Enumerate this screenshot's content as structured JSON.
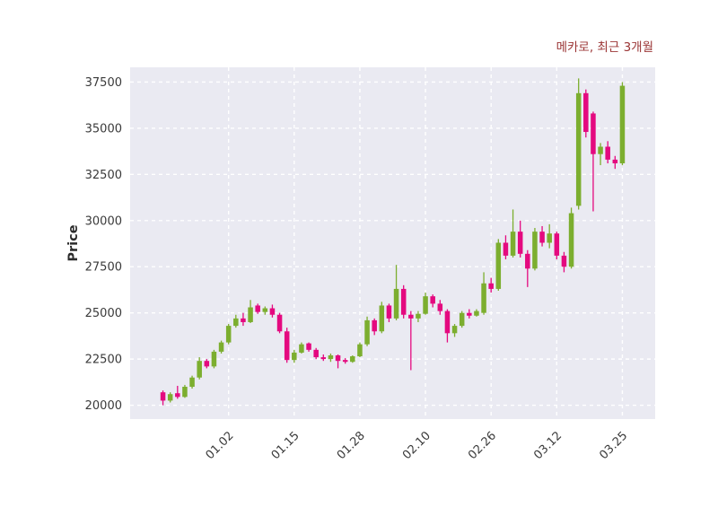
{
  "header": {
    "title": "메카로, 최근 3개월"
  },
  "chart_data": {
    "type": "candlestick",
    "title": "메카로, 최근 3개월",
    "xlabel": "",
    "ylabel": "Price",
    "ylim": [
      19250,
      38300
    ],
    "yticks": [
      20000,
      22500,
      25000,
      27500,
      30000,
      32500,
      35000,
      37500
    ],
    "xticks": [
      {
        "index": 9,
        "label": "01.02"
      },
      {
        "index": 18,
        "label": "01.15"
      },
      {
        "index": 27,
        "label": "01.28"
      },
      {
        "index": 36,
        "label": "02.10"
      },
      {
        "index": 45,
        "label": "02.26"
      },
      {
        "index": 54,
        "label": "03.12"
      },
      {
        "index": 63,
        "label": "03.25"
      }
    ],
    "grid": true,
    "legend": null,
    "colors": {
      "up": "#7cae2f",
      "down": "#e4097f",
      "plot_background": "#eaeaf2",
      "grid": "#ffffff",
      "title": "#9b3535",
      "tick": "#3a3a3a"
    },
    "candle_format": [
      "open",
      "high",
      "low",
      "close"
    ],
    "candles": [
      [
        20700,
        20800,
        20000,
        20250
      ],
      [
        20250,
        20700,
        20150,
        20600
      ],
      [
        20650,
        21050,
        20350,
        20450
      ],
      [
        20450,
        21100,
        20400,
        21000
      ],
      [
        21000,
        21600,
        20900,
        21500
      ],
      [
        21500,
        22600,
        21400,
        22400
      ],
      [
        22400,
        22500,
        22000,
        22100
      ],
      [
        22100,
        23000,
        22000,
        22900
      ],
      [
        22900,
        23500,
        22800,
        23400
      ],
      [
        23400,
        24400,
        23300,
        24300
      ],
      [
        24300,
        24900,
        24200,
        24700
      ],
      [
        24700,
        25000,
        24300,
        24500
      ],
      [
        24500,
        25700,
        24450,
        25300
      ],
      [
        25400,
        25500,
        24950,
        25050
      ],
      [
        25050,
        25350,
        24900,
        25250
      ],
      [
        25250,
        25450,
        24750,
        24900
      ],
      [
        24900,
        25000,
        23900,
        24000
      ],
      [
        24000,
        24200,
        22300,
        22450
      ],
      [
        22450,
        23000,
        22300,
        22850
      ],
      [
        22850,
        23400,
        22800,
        23300
      ],
      [
        23350,
        23400,
        22900,
        23000
      ],
      [
        23000,
        23100,
        22500,
        22600
      ],
      [
        22600,
        22750,
        22400,
        22500
      ],
      [
        22500,
        22800,
        22350,
        22700
      ],
      [
        22700,
        22750,
        22000,
        22400
      ],
      [
        22450,
        22550,
        22250,
        22350
      ],
      [
        22350,
        22700,
        22300,
        22650
      ],
      [
        22650,
        23400,
        22600,
        23300
      ],
      [
        23300,
        24800,
        23200,
        24600
      ],
      [
        24600,
        24700,
        23800,
        24000
      ],
      [
        24000,
        25600,
        23900,
        25400
      ],
      [
        25400,
        25500,
        24500,
        24700
      ],
      [
        24700,
        27600,
        24600,
        26300
      ],
      [
        26300,
        26500,
        24700,
        24900
      ],
      [
        24900,
        25100,
        21900,
        24700
      ],
      [
        24700,
        25100,
        24500,
        24950
      ],
      [
        24950,
        26100,
        24900,
        25900
      ],
      [
        25900,
        26000,
        25300,
        25500
      ],
      [
        25500,
        25700,
        24900,
        25100
      ],
      [
        25100,
        25200,
        23400,
        23900
      ],
      [
        23900,
        24400,
        23700,
        24300
      ],
      [
        24300,
        25100,
        24200,
        25000
      ],
      [
        25000,
        25200,
        24700,
        24850
      ],
      [
        24850,
        25200,
        24800,
        25100
      ],
      [
        25000,
        27200,
        24900,
        26600
      ],
      [
        26600,
        26900,
        26100,
        26300
      ],
      [
        26300,
        29000,
        26200,
        28800
      ],
      [
        28800,
        29200,
        27900,
        28100
      ],
      [
        28100,
        30600,
        28000,
        29400
      ],
      [
        29400,
        30000,
        28000,
        28200
      ],
      [
        28200,
        28400,
        26400,
        27400
      ],
      [
        27400,
        29600,
        27300,
        29400
      ],
      [
        29400,
        29700,
        28600,
        28800
      ],
      [
        28800,
        29800,
        28500,
        29300
      ],
      [
        29300,
        29400,
        27900,
        28100
      ],
      [
        28100,
        28300,
        27200,
        27500
      ],
      [
        27500,
        30700,
        27400,
        30400
      ],
      [
        30800,
        37700,
        30600,
        36900
      ],
      [
        36900,
        37100,
        34500,
        34800
      ],
      [
        35800,
        35900,
        30500,
        33600
      ],
      [
        33600,
        34200,
        33000,
        34000
      ],
      [
        34000,
        34300,
        33100,
        33300
      ],
      [
        33300,
        33500,
        32800,
        33100
      ],
      [
        33100,
        37500,
        33000,
        37300
      ]
    ]
  }
}
